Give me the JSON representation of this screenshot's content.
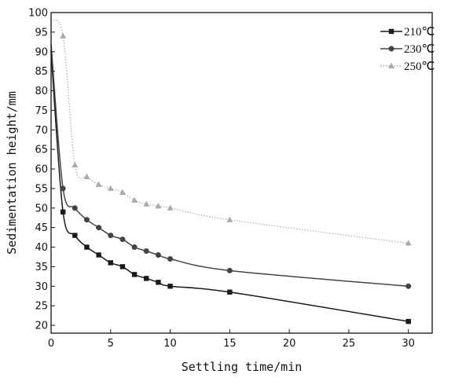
{
  "chart_data": {
    "type": "line",
    "title": "",
    "xlabel": "Settling time/min",
    "ylabel": "Sedimentation height/mm",
    "xlim": [
      0,
      32
    ],
    "ylim": [
      18,
      100
    ],
    "xticks": [
      0,
      5,
      10,
      15,
      20,
      25,
      30
    ],
    "yticks": [
      20,
      25,
      30,
      35,
      40,
      45,
      50,
      55,
      60,
      65,
      70,
      75,
      80,
      85,
      90,
      95,
      100
    ],
    "grid": false,
    "legend_position": "top-right",
    "series": [
      {
        "name": "210℃",
        "color": "#1a1a1a",
        "marker": "square",
        "line_style": "solid",
        "x": [
          0,
          1,
          2,
          3,
          4,
          5,
          6,
          7,
          8,
          9,
          10,
          15,
          30
        ],
        "y": [
          90,
          49,
          43,
          40,
          38,
          36,
          35,
          33,
          32,
          31,
          30,
          28.5,
          21
        ]
      },
      {
        "name": "230℃",
        "color": "#444444",
        "marker": "circle",
        "line_style": "solid",
        "x": [
          0,
          1,
          2,
          3,
          4,
          5,
          6,
          7,
          8,
          9,
          10,
          15,
          30
        ],
        "y": [
          92,
          55,
          50,
          47,
          45,
          43,
          42,
          40,
          39,
          38,
          37,
          34,
          30
        ]
      },
      {
        "name": "250℃",
        "color": "#aaaaaa",
        "marker": "triangle",
        "line_style": "dotted",
        "x": [
          0,
          1,
          2,
          3,
          4,
          5,
          6,
          7,
          8,
          9,
          10,
          15,
          30
        ],
        "y": [
          98,
          94,
          61,
          58,
          56,
          55,
          54,
          52,
          51,
          50.5,
          50,
          47,
          41
        ]
      }
    ]
  }
}
